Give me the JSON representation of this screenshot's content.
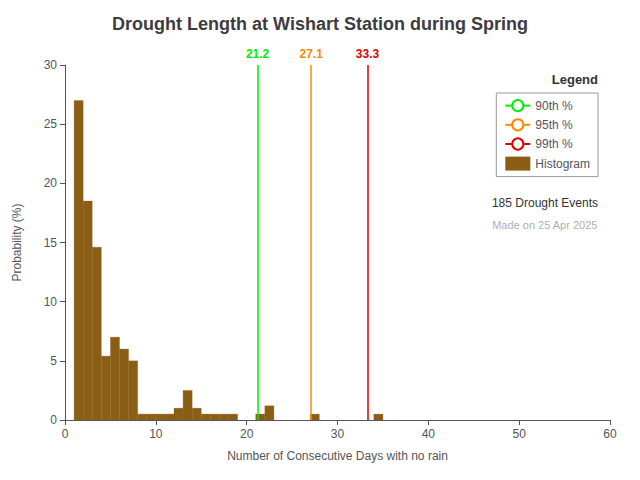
{
  "chart_data": {
    "type": "histogram",
    "title": "Drought Length at Wishart Station during Spring",
    "x_label": "Number of Consecutive Days with no rain",
    "y_label": "Probability (%)",
    "name": "Histogram",
    "color": "#8B5E15",
    "bins": [
      1,
      2,
      3,
      4,
      5,
      6,
      7,
      8,
      9,
      10,
      11,
      12,
      13,
      14,
      15,
      16,
      17,
      18,
      19,
      20,
      21,
      22,
      23,
      24,
      25,
      26,
      27,
      28,
      29,
      30,
      31,
      32,
      33,
      34,
      35,
      36,
      37,
      38,
      39,
      40,
      41,
      42,
      43,
      44,
      45,
      46,
      47,
      48,
      49,
      50,
      51,
      52,
      53,
      54,
      55,
      56,
      57,
      58,
      59,
      60,
      61
    ],
    "values": [
      27.0,
      18.5,
      14.6,
      5.4,
      7.0,
      6.0,
      5.0,
      0.5,
      0.5,
      0.5,
      0.5,
      1.0,
      2.5,
      1.0,
      0.5,
      0.5,
      0.5,
      0.5,
      0.0,
      0.0,
      0.5,
      1.2,
      0.0,
      0.0,
      0.0,
      0.0,
      0.5,
      0.0,
      0.0,
      0.0,
      0.0,
      0.0,
      0.0,
      0.5,
      0.0,
      0.0,
      0.0,
      0.0,
      0.0,
      0.0,
      0.0,
      0.0,
      0.0,
      0.0,
      0.0,
      0.0,
      0.0,
      0.0,
      0.0,
      0.0,
      0.0,
      0.0,
      0.0,
      0.0,
      0.0,
      0.0,
      0.0,
      0.0,
      0.0,
      0.0
    ],
    "vlines": [
      {
        "x": 21.2,
        "name": "90th %",
        "label": "21.2",
        "color": "#00ee00"
      },
      {
        "x": 27.1,
        "name": "95th %",
        "label": "27.1",
        "color": "#ff8800"
      },
      {
        "x": 33.3,
        "name": "99th %",
        "label": "33.3",
        "color": "#dd0000"
      }
    ],
    "legend_title": "Legend",
    "annotations": [
      {
        "text": "185 Drought Events"
      },
      {
        "text": "Made on 25 Apr 2025",
        "color": "#b0b0b0"
      }
    ],
    "xlim": [
      0,
      60
    ],
    "ylim": [
      0,
      30
    ],
    "xticks": [
      0,
      10,
      20,
      30,
      40,
      50,
      60
    ],
    "yticks": [
      0,
      5,
      10,
      15,
      20,
      25,
      30
    ],
    "grid": false,
    "legend": "upper right"
  }
}
